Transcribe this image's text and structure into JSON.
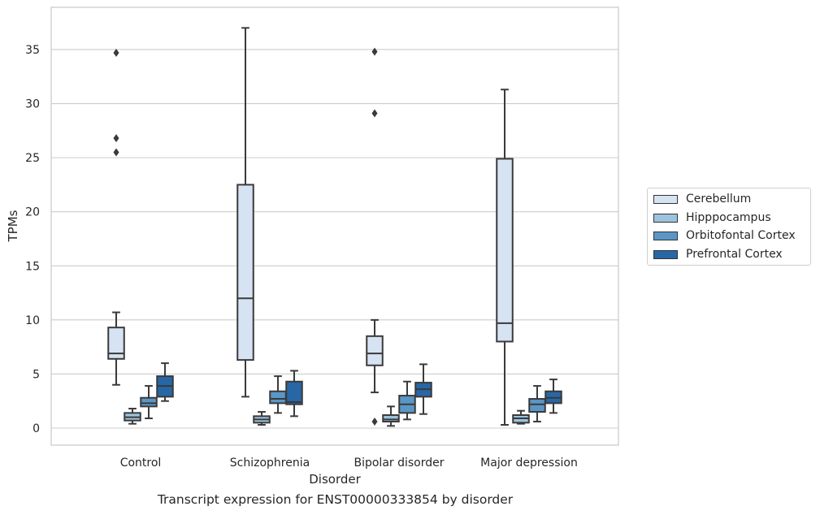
{
  "chart_data": {
    "type": "box",
    "title": "",
    "caption": "Transcript expression for ENST00000333854 by disorder",
    "xlabel": "Disorder",
    "ylabel": "TPMs",
    "ylim": [
      -1.6,
      38.3
    ],
    "yticks": [
      0,
      5,
      10,
      15,
      20,
      25,
      30,
      35
    ],
    "grid": "horizontal",
    "legend_position": "right",
    "categories": [
      "Control",
      "Schizophrenia",
      "Bipolar disorder",
      "Major depression"
    ],
    "series": [
      {
        "name": "Cerebellum",
        "color": "#d6e3f2",
        "boxes": [
          {
            "whislo": 4.0,
            "q1": 6.4,
            "med": 6.9,
            "q3": 9.3,
            "whishi": 10.7,
            "fliers": [
              34.7,
              26.8,
              25.5
            ]
          },
          {
            "whislo": 2.9,
            "q1": 6.3,
            "med": 12.0,
            "q3": 22.5,
            "whishi": 37.0,
            "fliers": []
          },
          {
            "whislo": 3.3,
            "q1": 5.8,
            "med": 6.9,
            "q3": 8.5,
            "whishi": 10.0,
            "fliers": [
              34.8,
              29.1,
              0.6
            ]
          },
          {
            "whislo": 0.3,
            "q1": 8.0,
            "med": 9.7,
            "q3": 24.9,
            "whishi": 31.3,
            "fliers": []
          }
        ]
      },
      {
        "name": "Hipppocampus",
        "color": "#9dc4de",
        "boxes": [
          {
            "whislo": 0.4,
            "q1": 0.7,
            "med": 1.0,
            "q3": 1.4,
            "whishi": 1.8,
            "fliers": []
          },
          {
            "whislo": 0.3,
            "q1": 0.5,
            "med": 0.8,
            "q3": 1.1,
            "whishi": 1.5,
            "fliers": []
          },
          {
            "whislo": 0.2,
            "q1": 0.6,
            "med": 0.8,
            "q3": 1.2,
            "whishi": 2.0,
            "fliers": []
          },
          {
            "whislo": 0.4,
            "q1": 0.5,
            "med": 0.9,
            "q3": 1.2,
            "whishi": 1.6,
            "fliers": []
          }
        ]
      },
      {
        "name": "Orbitofontal Cortex",
        "color": "#5a97c6",
        "boxes": [
          {
            "whislo": 0.9,
            "q1": 2.0,
            "med": 2.3,
            "q3": 2.8,
            "whishi": 3.9,
            "fliers": []
          },
          {
            "whislo": 1.4,
            "q1": 2.3,
            "med": 2.7,
            "q3": 3.4,
            "whishi": 4.8,
            "fliers": []
          },
          {
            "whislo": 0.8,
            "q1": 1.4,
            "med": 2.2,
            "q3": 3.0,
            "whishi": 4.3,
            "fliers": []
          },
          {
            "whislo": 0.6,
            "q1": 1.5,
            "med": 2.2,
            "q3": 2.7,
            "whishi": 3.9,
            "fliers": []
          }
        ]
      },
      {
        "name": "Prefrontal Cortex",
        "color": "#2767a6",
        "boxes": [
          {
            "whislo": 2.5,
            "q1": 2.9,
            "med": 3.9,
            "q3": 4.8,
            "whishi": 6.0,
            "fliers": []
          },
          {
            "whislo": 1.1,
            "q1": 2.2,
            "med": 2.4,
            "q3": 4.3,
            "whishi": 5.3,
            "fliers": []
          },
          {
            "whislo": 1.3,
            "q1": 2.9,
            "med": 3.6,
            "q3": 4.2,
            "whishi": 5.9,
            "fliers": []
          },
          {
            "whislo": 1.4,
            "q1": 2.3,
            "med": 2.8,
            "q3": 3.4,
            "whishi": 4.5,
            "fliers": []
          }
        ]
      }
    ]
  }
}
